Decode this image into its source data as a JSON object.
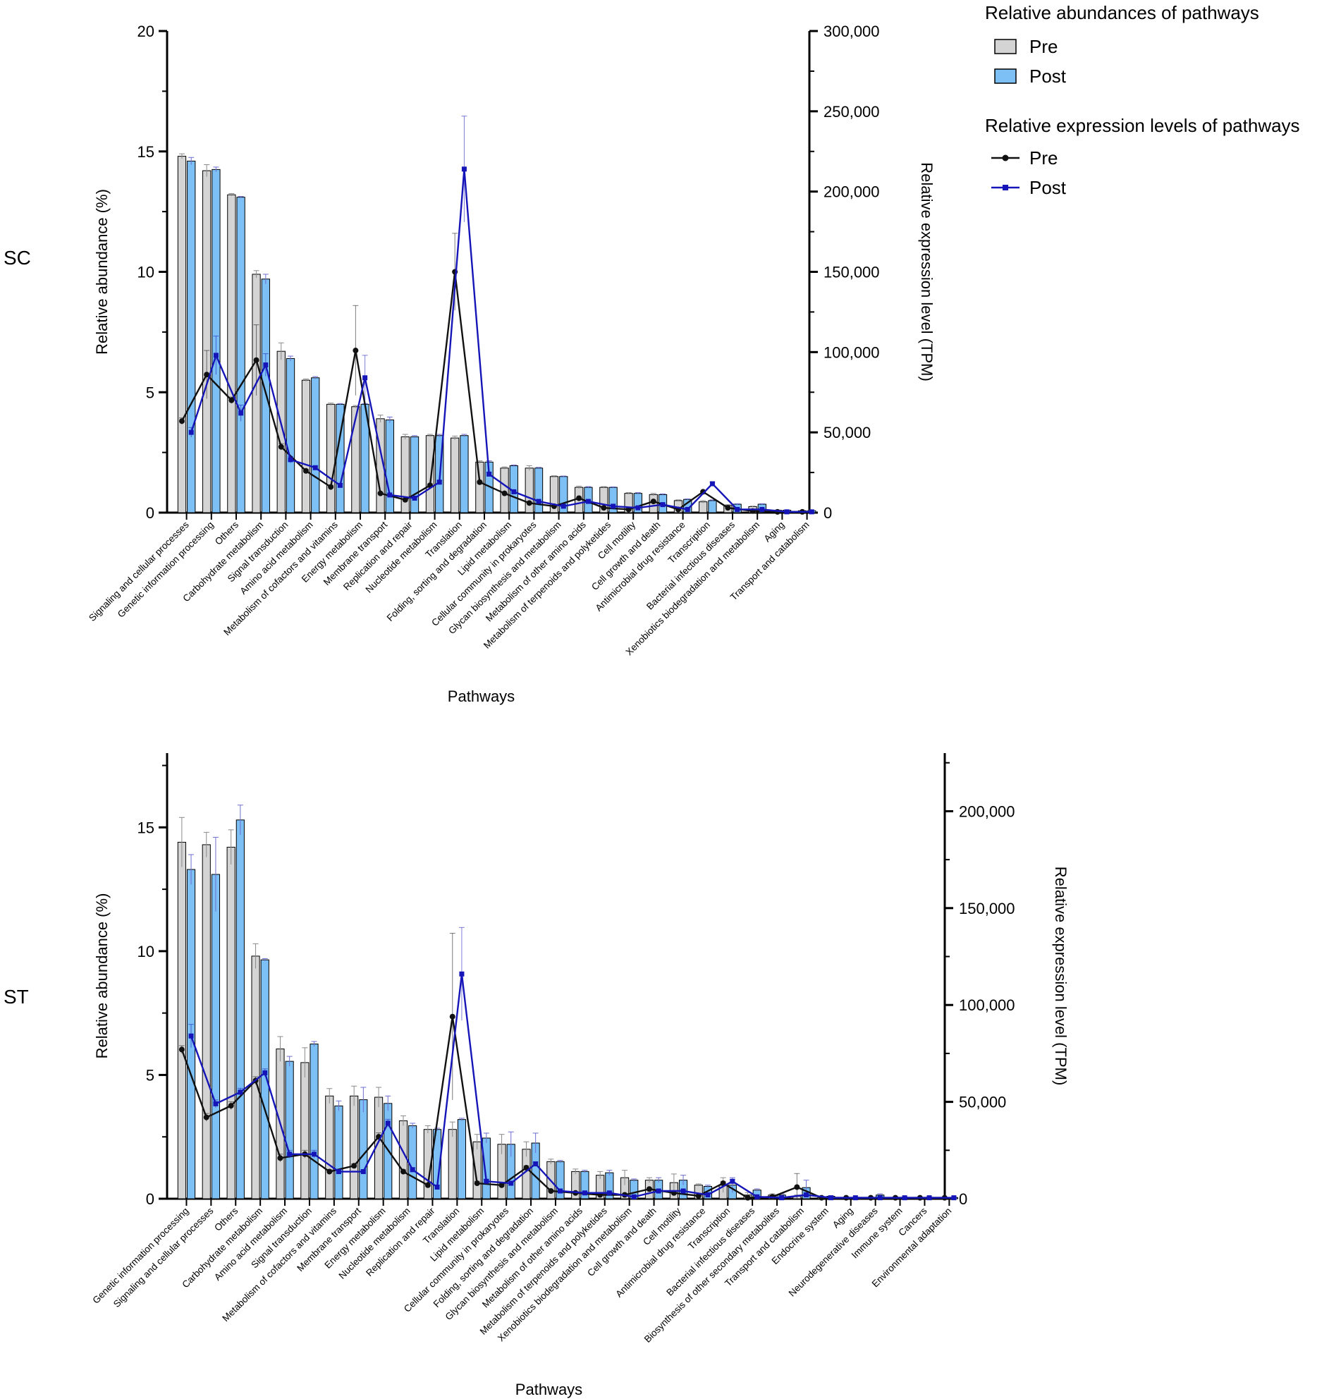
{
  "legend": {
    "abundance_title": "Relative abundances of pathways",
    "expression_title": "Relative expression levels of pathways",
    "pre_label": "Pre",
    "post_label": "Post"
  },
  "colors": {
    "pre_bar": "#d4d4d4",
    "post_bar": "#7cc0f5",
    "pre_line": "#111111",
    "post_line": "#1515b8",
    "error_pre": "#8a8a8a",
    "error_post": "#6e6ed0"
  },
  "chart_data": [
    {
      "type": "bar",
      "panel": "SC",
      "xlabel": "Pathways",
      "ylabel": "Relative abundance (%)",
      "y2label": "Relative expression level (TPM)",
      "ylim": [
        0,
        20
      ],
      "y2lim": [
        0,
        300000
      ],
      "yticks": [
        "0",
        "5",
        "10",
        "15",
        "20"
      ],
      "y2ticks": [
        "0",
        "50,000",
        "100,000",
        "150,000",
        "200,000",
        "250,000",
        "300,000"
      ],
      "categories": [
        "Signaling and cellular processes",
        "Genetic information processing",
        "Others",
        "Carbohydrate metabolism",
        "Signal transduction",
        "Amino acid metabolism",
        "Metabolism of cofactors and vitamins",
        "Energy metabolism",
        "Membrane transport",
        "Replication and repair",
        "Nucleotide metabolism",
        "Translation",
        "Folding, sorting and degradation",
        "Lipid metabolism",
        "Cellular community in prokaryotes",
        "Glycan biosynthesis and metabolism",
        "Metabolism of other amino acids",
        "Metabolism of terpenoids and polyketides",
        "Cell motility",
        "Cell growth and death",
        "Antimicrobial drug resistance",
        "Transcription",
        "Bacterial infectious diseases",
        "Xenobiotics biodegradation and metabolism",
        "Aging",
        "Transport and catabolism"
      ],
      "series": [
        {
          "name": "Pre",
          "kind": "bar",
          "values": [
            14.8,
            14.2,
            13.2,
            9.9,
            6.7,
            5.5,
            4.5,
            4.4,
            3.9,
            3.15,
            3.2,
            3.1,
            2.1,
            1.85,
            1.85,
            1.5,
            1.05,
            1.05,
            0.8,
            0.75,
            0.5,
            0.45,
            0.3,
            0.25,
            0.1,
            0.08
          ],
          "errors": [
            0.1,
            0.25,
            0.05,
            0.15,
            0.35,
            0.05,
            0.05,
            0.05,
            0.15,
            0.1,
            0.05,
            0.08,
            0.05,
            0.05,
            0.1,
            0.03,
            0.05,
            0.03,
            0.03,
            0.05,
            0.03,
            0.05,
            0.03,
            0.02,
            0.01,
            0.01
          ]
        },
        {
          "name": "Post",
          "kind": "bar",
          "values": [
            14.6,
            14.25,
            13.1,
            9.7,
            6.4,
            5.6,
            4.5,
            4.5,
            3.85,
            3.15,
            3.2,
            3.2,
            2.1,
            1.95,
            1.85,
            1.5,
            1.05,
            1.05,
            0.8,
            0.75,
            0.55,
            0.5,
            0.35,
            0.35,
            0.1,
            0.08
          ],
          "errors": [
            0.15,
            0.1,
            0.03,
            0.2,
            0.1,
            0.05,
            0.03,
            0.03,
            0.12,
            0.05,
            0.05,
            0.05,
            0.05,
            0.03,
            0.03,
            0.02,
            0.03,
            0.02,
            0.03,
            0.03,
            0.02,
            0.03,
            0.02,
            0.02,
            0.01,
            0.01
          ]
        },
        {
          "name": "Pre",
          "kind": "line",
          "values": [
            57000,
            86000,
            70000,
            95000,
            41000,
            26000,
            16000,
            101000,
            12000,
            8000,
            17000,
            150000,
            19000,
            12000,
            6000,
            4000,
            9000,
            3000,
            2000,
            7000,
            2000,
            13000,
            3000,
            1000,
            500,
            500
          ],
          "errors": [
            2000,
            15000,
            2000,
            22000,
            2000,
            1000,
            1000,
            28000,
            500,
            500,
            1000,
            24000,
            500,
            300,
            300,
            200,
            500,
            200,
            200,
            300,
            200,
            500,
            200,
            100,
            50,
            50
          ]
        },
        {
          "name": "Post",
          "kind": "line",
          "values": [
            50000,
            98000,
            62000,
            92000,
            33000,
            28000,
            17000,
            84000,
            11000,
            9000,
            19000,
            214000,
            24000,
            13000,
            7000,
            4000,
            7000,
            4000,
            3000,
            5000,
            2000,
            18000,
            2000,
            2000,
            500,
            500
          ],
          "errors": [
            3000,
            12000,
            5000,
            7000,
            2000,
            1000,
            1000,
            14000,
            500,
            500,
            1000,
            33000,
            1000,
            500,
            300,
            200,
            500,
            200,
            200,
            300,
            200,
            1000,
            200,
            100,
            50,
            50
          ]
        }
      ]
    },
    {
      "type": "bar",
      "panel": "ST",
      "xlabel": "Pathways",
      "ylabel": "Relative abundance (%)",
      "y2label": "Relative expression level (TPM)",
      "ylim": [
        0,
        18
      ],
      "y2lim": [
        0,
        230000
      ],
      "yticks": [
        "0",
        "5",
        "10",
        "15"
      ],
      "y2ticks": [
        "0",
        "50,000",
        "100,000",
        "150,000",
        "200,000"
      ],
      "categories": [
        "Genetic information processing",
        "Signaling and cellular processes",
        "Others",
        "Carbohydrate metabolism",
        "Amino acid metabolism",
        "Signal transduction",
        "Metabolism of cofactors and vitamins",
        "Membrane transport",
        "Energy metabolism",
        "Nucleotide metabolism",
        "Replication and repair",
        "Translation",
        "Lipid metabolism",
        "Cellular community in prokaryotes",
        "Folding, sorting and degradation",
        "Glycan biosynthesis and metabolism",
        "Metabolism of other amino acids",
        "Metabolism of terpenoids and polyketides",
        "Xenobiotics biodegradation and metabolism",
        "Cell growth and death",
        "Cell motility",
        "Antimicrobial drug resistance",
        "Transcription",
        "Bacterial infectious diseases",
        "Biosynthesis of other secondary metabolites",
        "Transport and catabolism",
        "Endocrine system",
        "Aging",
        "Neurodegenerative diseases",
        "Immune system",
        "Cancers",
        "Environmental adaptation"
      ],
      "series": [
        {
          "name": "Pre",
          "kind": "bar",
          "values": [
            14.4,
            14.3,
            14.2,
            9.8,
            6.05,
            5.5,
            4.15,
            4.15,
            4.1,
            3.15,
            2.8,
            2.8,
            2.3,
            2.2,
            2.0,
            1.5,
            1.1,
            0.95,
            0.85,
            0.75,
            0.65,
            0.55,
            0.55,
            0.15,
            0.15,
            0.1,
            0.05,
            0.05,
            0.05,
            0.05,
            0.05,
            0.05
          ],
          "errors": [
            1.0,
            0.5,
            0.7,
            0.5,
            0.5,
            0.6,
            0.3,
            0.4,
            0.4,
            0.2,
            0.15,
            0.3,
            0.3,
            0.4,
            0.3,
            0.1,
            0.1,
            0.15,
            0.3,
            0.1,
            0.35,
            0.05,
            0.3,
            0.1,
            0.05,
            0.05,
            0.02,
            0.02,
            0.02,
            0.02,
            0.02,
            0.02
          ]
        },
        {
          "name": "Post",
          "kind": "bar",
          "values": [
            13.3,
            13.1,
            15.3,
            9.65,
            5.55,
            6.25,
            3.75,
            4.0,
            3.85,
            2.95,
            2.8,
            3.2,
            2.45,
            2.2,
            2.25,
            1.5,
            1.1,
            1.05,
            0.75,
            0.75,
            0.75,
            0.5,
            0.55,
            0.35,
            0.15,
            0.45,
            0.1,
            0.05,
            0.15,
            0.05,
            0.05,
            0.05
          ],
          "errors": [
            0.6,
            1.5,
            0.6,
            0.05,
            0.2,
            0.1,
            0.2,
            0.5,
            0.3,
            0.1,
            0.05,
            0.05,
            0.2,
            0.5,
            0.4,
            0.05,
            0.05,
            0.1,
            0.05,
            0.1,
            0.2,
            0.05,
            0.3,
            0.05,
            0.05,
            0.3,
            0.02,
            0.02,
            0.05,
            0.02,
            0.02,
            0.02
          ]
        },
        {
          "name": "Pre",
          "kind": "line",
          "values": [
            77000,
            42000,
            48000,
            61000,
            21000,
            23000,
            14000,
            17000,
            32000,
            14000,
            7000,
            94000,
            8000,
            7000,
            16000,
            4000,
            3000,
            2000,
            2000,
            5000,
            3000,
            1500,
            8000,
            500,
            1000,
            6000,
            500,
            500,
            500,
            500,
            500,
            500
          ],
          "errors": [
            2000,
            2000,
            2000,
            2000,
            2000,
            2000,
            1000,
            1000,
            2000,
            1000,
            1000,
            43000,
            1000,
            1000,
            1000,
            500,
            500,
            500,
            500,
            500,
            500,
            300,
            1000,
            100,
            100,
            7000,
            100,
            100,
            100,
            100,
            100,
            100
          ]
        },
        {
          "name": "Post",
          "kind": "line",
          "values": [
            84000,
            49000,
            55000,
            65000,
            23000,
            23000,
            14000,
            14000,
            39000,
            15000,
            6000,
            116000,
            9000,
            8000,
            18000,
            4000,
            3000,
            3000,
            1000,
            4000,
            4000,
            2000,
            9000,
            1000,
            500,
            2000,
            500,
            500,
            500,
            500,
            500,
            500
          ],
          "errors": [
            6000,
            2000,
            2000,
            2000,
            2000,
            2000,
            1000,
            1000,
            2000,
            1000,
            1000,
            24000,
            1000,
            1000,
            1000,
            500,
            500,
            500,
            500,
            500,
            500,
            300,
            1000,
            100,
            100,
            1000,
            100,
            100,
            100,
            100,
            100,
            100
          ]
        }
      ]
    }
  ]
}
